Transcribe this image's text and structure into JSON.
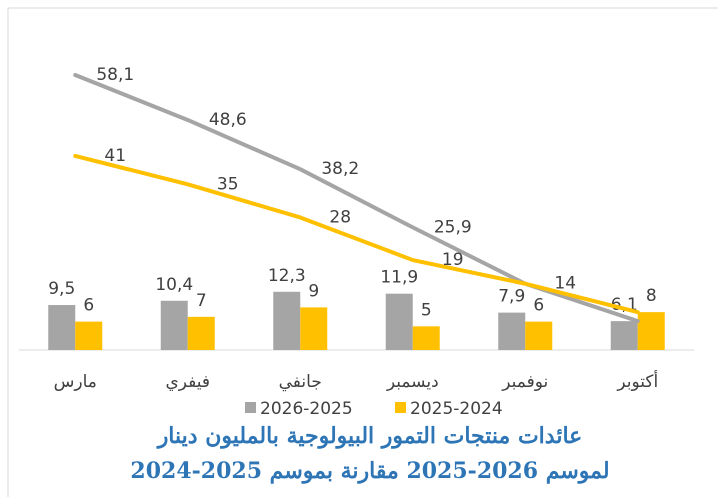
{
  "chart_data": {
    "type": "combo",
    "title": "عائدات منتجات التمور البيولوجية بالمليون دينار",
    "subtitle": "لموسم 2026-2025 مقارنة بموسم 2025-2024",
    "categories": [
      "مارس",
      "فيفري",
      "جانفي",
      "ديسمبر",
      "نوفمبر",
      "أكتوبر"
    ],
    "ylim": [
      0,
      60
    ],
    "series": [
      {
        "name": "2026-2025",
        "type": "bar",
        "color": "#a5a5a5",
        "values": [
          9.5,
          10.4,
          12.3,
          11.9,
          7.9,
          6.1
        ],
        "value_labels": [
          "9,5",
          "10,4",
          "12,3",
          "11,9",
          "7,9",
          "6,1"
        ]
      },
      {
        "name": "2025-2024",
        "type": "bar",
        "color": "#ffc000",
        "values": [
          6,
          7,
          9,
          5,
          6,
          8
        ]
      },
      {
        "name": "2026-2025",
        "type": "line",
        "color": "#a5a5a5",
        "values": [
          58.1,
          48.6,
          38.2,
          25.9,
          14,
          6.1
        ],
        "value_labels": [
          "58,1",
          "48,6",
          "38,2",
          "25,9",
          null,
          null
        ]
      },
      {
        "name": "2025-2024",
        "type": "line",
        "color": "#ffc000",
        "values": [
          41,
          35,
          28,
          19,
          14,
          8
        ],
        "value_labels": [
          "41",
          "35",
          "28",
          "19",
          "14",
          null
        ]
      }
    ],
    "legend": "bottom"
  }
}
